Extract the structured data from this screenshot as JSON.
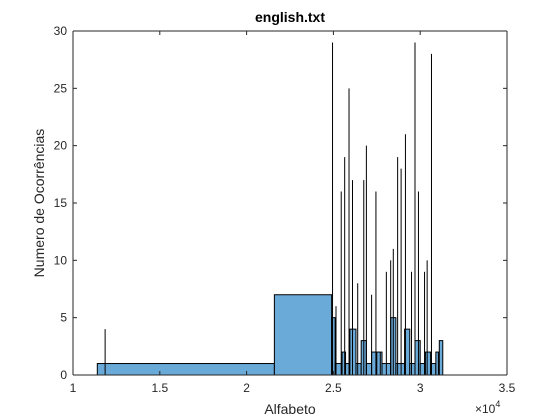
{
  "colors": {
    "bar_fill": "#6aaad8",
    "bar_edge": "#000000",
    "axis": "#262626"
  },
  "chart_data": {
    "type": "bar",
    "title": "english.txt",
    "xlabel": "Alfabeto",
    "ylabel": "Numero de Ocorrências",
    "x_exponent_label": "×10",
    "x_exponent_power": "4",
    "xlim": [
      10000,
      35000
    ],
    "ylim": [
      0,
      30
    ],
    "xticks": [
      10000,
      15000,
      20000,
      25000,
      30000,
      35000
    ],
    "xtick_labels": [
      "1",
      "1.5",
      "2",
      "2.5",
      "3",
      "3.5"
    ],
    "yticks": [
      0,
      5,
      10,
      15,
      20,
      25,
      30
    ],
    "ytick_labels": [
      "0",
      "5",
      "10",
      "15",
      "20",
      "25",
      "30"
    ],
    "grid": false,
    "bars": [
      {
        "x0": 11400,
        "x1": 21600,
        "value": 1
      },
      {
        "x0": 21600,
        "x1": 24900,
        "value": 7
      },
      {
        "x0": 24900,
        "x1": 25100,
        "value": 5
      },
      {
        "x0": 25100,
        "x1": 25500,
        "value": 1
      },
      {
        "x0": 25500,
        "x1": 25700,
        "value": 2
      },
      {
        "x0": 25700,
        "x1": 25950,
        "value": 1
      },
      {
        "x0": 25950,
        "x1": 26300,
        "value": 4
      },
      {
        "x0": 26300,
        "x1": 26600,
        "value": 1
      },
      {
        "x0": 26600,
        "x1": 26900,
        "value": 3
      },
      {
        "x0": 26900,
        "x1": 27200,
        "value": 1
      },
      {
        "x0": 27200,
        "x1": 27500,
        "value": 2
      },
      {
        "x0": 27500,
        "x1": 27800,
        "value": 2
      },
      {
        "x0": 27800,
        "x1": 28300,
        "value": 1
      },
      {
        "x0": 28300,
        "x1": 28600,
        "value": 5
      },
      {
        "x0": 28600,
        "x1": 29100,
        "value": 1
      },
      {
        "x0": 29100,
        "x1": 29400,
        "value": 4
      },
      {
        "x0": 29400,
        "x1": 29700,
        "value": 1
      },
      {
        "x0": 29700,
        "x1": 30000,
        "value": 3
      },
      {
        "x0": 30000,
        "x1": 30300,
        "value": 1
      },
      {
        "x0": 30300,
        "x1": 30600,
        "value": 2
      },
      {
        "x0": 30600,
        "x1": 30900,
        "value": 1
      },
      {
        "x0": 30900,
        "x1": 31100,
        "value": 2
      },
      {
        "x0": 31100,
        "x1": 31300,
        "value": 3
      }
    ],
    "spikes": [
      {
        "x": 11850,
        "value": 4
      },
      {
        "x": 24950,
        "value": 29
      },
      {
        "x": 25150,
        "value": 6
      },
      {
        "x": 25450,
        "value": 16
      },
      {
        "x": 25650,
        "value": 19
      },
      {
        "x": 25900,
        "value": 25
      },
      {
        "x": 26100,
        "value": 17
      },
      {
        "x": 26400,
        "value": 8
      },
      {
        "x": 26750,
        "value": 17
      },
      {
        "x": 26900,
        "value": 20
      },
      {
        "x": 27200,
        "value": 7
      },
      {
        "x": 27450,
        "value": 16
      },
      {
        "x": 27700,
        "value": 2
      },
      {
        "x": 28050,
        "value": 9
      },
      {
        "x": 28300,
        "value": 10
      },
      {
        "x": 28450,
        "value": 11
      },
      {
        "x": 28700,
        "value": 19
      },
      {
        "x": 28900,
        "value": 18
      },
      {
        "x": 29150,
        "value": 21
      },
      {
        "x": 29500,
        "value": 9
      },
      {
        "x": 29700,
        "value": 29
      },
      {
        "x": 29900,
        "value": 16
      },
      {
        "x": 30250,
        "value": 9
      },
      {
        "x": 30400,
        "value": 10
      },
      {
        "x": 30650,
        "value": 28
      },
      {
        "x": 31050,
        "value": 2
      }
    ]
  }
}
